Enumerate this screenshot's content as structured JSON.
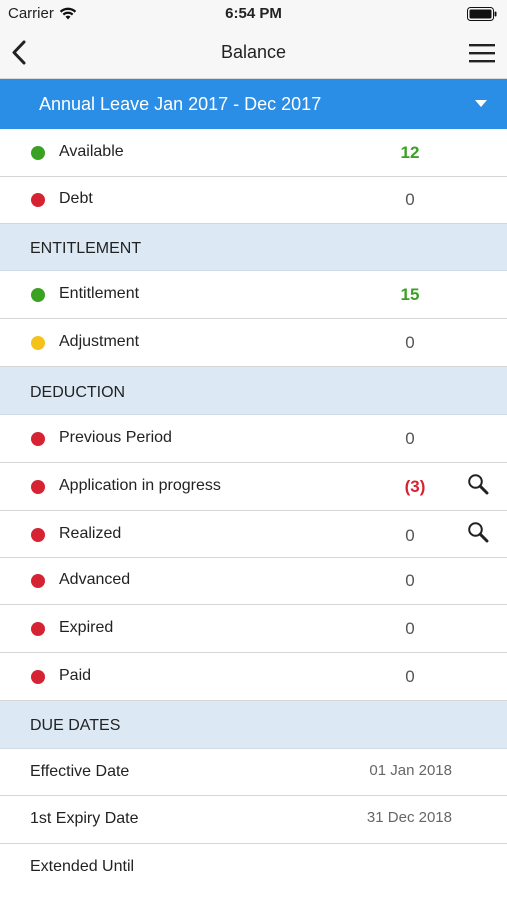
{
  "status_bar": {
    "carrier": "Carrier",
    "time": "6:54 PM"
  },
  "nav": {
    "title": "Balance"
  },
  "period": {
    "label": "Annual Leave Jan 2017 - Dec 2017"
  },
  "colors": {
    "accent": "#2a8de6",
    "green": "#3ba123",
    "red": "#d62333",
    "yellow": "#f5c21b",
    "section_bg": "#dce9f5"
  },
  "summary": [
    {
      "label": "Available",
      "value": "12",
      "dot": "green"
    },
    {
      "label": "Debt",
      "value": "0",
      "dot": "red"
    }
  ],
  "entitlement": {
    "header": "ENTITLEMENT",
    "rows": [
      {
        "label": "Entitlement",
        "value": "15",
        "dot": "green"
      },
      {
        "label": "Adjustment",
        "value": "0",
        "dot": "yellow"
      }
    ]
  },
  "deduction": {
    "header": "DEDUCTION",
    "rows": [
      {
        "label": "Previous Period",
        "value": "0",
        "dot": "red"
      },
      {
        "label": "Application in progress",
        "value": "(3)",
        "dot": "red",
        "icon": "search-icon"
      },
      {
        "label": "Realized",
        "value": "0",
        "dot": "red",
        "icon": "search-icon"
      },
      {
        "label": "Advanced",
        "value": "0",
        "dot": "red"
      },
      {
        "label": "Expired",
        "value": "0",
        "dot": "red"
      },
      {
        "label": "Paid",
        "value": "0",
        "dot": "red"
      }
    ]
  },
  "due_dates": {
    "header": "DUE DATES",
    "rows": [
      {
        "label": "Effective Date",
        "value": "01 Jan 2018"
      },
      {
        "label": "1st Expiry Date",
        "value": "31 Dec 2018"
      },
      {
        "label": "Extended Until",
        "value": ""
      }
    ]
  }
}
